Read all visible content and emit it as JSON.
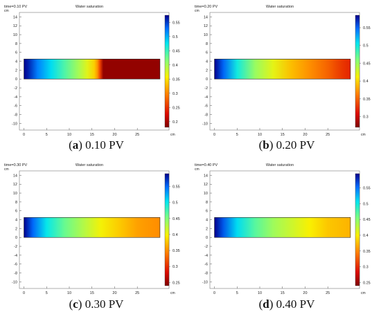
{
  "chart_data": [
    {
      "type": "heatmap",
      "id": "a",
      "time_label": "time=0.10 PV",
      "title": "Water saturation",
      "axis_unit": "cm",
      "x_ticks": [
        0,
        5,
        10,
        15,
        20,
        25
      ],
      "y_ticks": [
        14,
        12,
        10,
        8,
        6,
        4,
        2,
        0,
        -2,
        -4,
        -6,
        -8,
        -10
      ],
      "xlim": [
        -1,
        32
      ],
      "ylim": [
        -11.5,
        15
      ],
      "domain": {
        "x": [
          0,
          30
        ],
        "y": [
          0,
          4.5
        ]
      },
      "colorbar": {
        "ticks": [
          0.55,
          0.5,
          0.45,
          0.4,
          0.35,
          0.3,
          0.25,
          0.2
        ],
        "min": 0.18,
        "max": 0.575
      },
      "profile": {
        "x": [
          0,
          1,
          3,
          6,
          9,
          12,
          14,
          15.5,
          16.2,
          16.8,
          17.5,
          30
        ],
        "s": [
          0.575,
          0.56,
          0.52,
          0.48,
          0.44,
          0.4,
          0.37,
          0.34,
          0.31,
          0.26,
          0.19,
          0.19
        ]
      },
      "caption_letter": "a",
      "caption_text": "0.10 PV"
    },
    {
      "type": "heatmap",
      "id": "b",
      "time_label": "time=0.20 PV",
      "title": "Water saturation",
      "axis_unit": "cm",
      "x_ticks": [
        0,
        5,
        10,
        15,
        20,
        25
      ],
      "y_ticks": [
        14,
        12,
        10,
        8,
        6,
        4,
        2,
        0,
        -2,
        -4,
        -6,
        -8,
        -10
      ],
      "xlim": [
        -1,
        32
      ],
      "ylim": [
        -11.5,
        15
      ],
      "domain": {
        "x": [
          0,
          30
        ],
        "y": [
          0,
          4.5
        ]
      },
      "colorbar": {
        "ticks": [
          0.55,
          0.5,
          0.45,
          0.4,
          0.35,
          0.3
        ],
        "min": 0.27,
        "max": 0.585
      },
      "profile": {
        "x": [
          0,
          2,
          5,
          9,
          13,
          17,
          21,
          25,
          28,
          30
        ],
        "s": [
          0.585,
          0.55,
          0.5,
          0.45,
          0.42,
          0.39,
          0.37,
          0.35,
          0.33,
          0.32
        ]
      },
      "caption_letter": "b",
      "caption_text": "0.20 PV"
    },
    {
      "type": "heatmap",
      "id": "c",
      "time_label": "time=0.30 PV",
      "title": "Water saturation",
      "axis_unit": "cm",
      "x_ticks": [
        0,
        5,
        10,
        15,
        20,
        25
      ],
      "y_ticks": [
        14,
        12,
        10,
        8,
        6,
        4,
        2,
        0,
        -2,
        -4,
        -6,
        -8,
        -10
      ],
      "xlim": [
        -1,
        32
      ],
      "ylim": [
        -11.5,
        15
      ],
      "domain": {
        "x": [
          0,
          30
        ],
        "y": [
          0,
          4.5
        ]
      },
      "colorbar": {
        "ticks": [
          0.55,
          0.5,
          0.45,
          0.4,
          0.35,
          0.3,
          0.25
        ],
        "min": 0.24,
        "max": 0.59
      },
      "profile": {
        "x": [
          0,
          2,
          5,
          9,
          13,
          17,
          21,
          25,
          30
        ],
        "s": [
          0.59,
          0.55,
          0.5,
          0.46,
          0.43,
          0.4,
          0.38,
          0.36,
          0.35
        ]
      },
      "caption_letter": "c",
      "caption_text": "0.30 PV"
    },
    {
      "type": "heatmap",
      "id": "d",
      "time_label": "time=0.40 PV",
      "title": "Water saturation",
      "axis_unit": "cm",
      "x_ticks": [
        0,
        5,
        10,
        15,
        20,
        25
      ],
      "y_ticks": [
        14,
        12,
        10,
        8,
        6,
        4,
        2,
        0,
        -2,
        -4,
        -6,
        -8,
        -10
      ],
      "xlim": [
        -1,
        32
      ],
      "ylim": [
        -11.5,
        15
      ],
      "domain": {
        "x": [
          0,
          30
        ],
        "y": [
          0,
          4.5
        ]
      },
      "colorbar": {
        "ticks": [
          0.55,
          0.5,
          0.45,
          0.4,
          0.35,
          0.3,
          0.25
        ],
        "min": 0.24,
        "max": 0.595
      },
      "profile": {
        "x": [
          0,
          2,
          5,
          9,
          13,
          17,
          21,
          25,
          30
        ],
        "s": [
          0.595,
          0.56,
          0.51,
          0.47,
          0.44,
          0.42,
          0.4,
          0.38,
          0.37
        ]
      },
      "caption_letter": "d",
      "caption_text": "0.40 PV"
    }
  ]
}
